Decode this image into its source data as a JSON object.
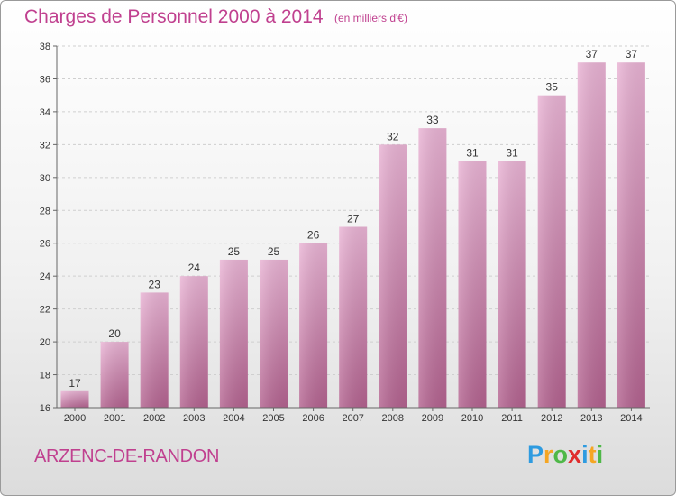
{
  "title": "Charges de Personnel 2000 à 2014",
  "subtitle": "(en milliers d'€)",
  "town": "ARZENC-DE-RANDON",
  "logo": {
    "letters": [
      {
        "ch": "P",
        "color": "#2e9be0"
      },
      {
        "ch": "r",
        "color": "#f5a623"
      },
      {
        "ch": "o",
        "color": "#4fb848"
      },
      {
        "ch": "x",
        "color": "#e02b2b"
      },
      {
        "ch": "i",
        "color": "#2e9be0"
      },
      {
        "ch": "t",
        "color": "#f5a623"
      },
      {
        "ch": "i",
        "color": "#4fb848"
      }
    ]
  },
  "colors": {
    "accent": "#c0408f",
    "bar_top": "#e9b3d4",
    "bar_bottom": "#b3628f"
  },
  "chart_data": {
    "type": "bar",
    "title": "Charges de Personnel 2000 à 2014",
    "subtitle": "(en milliers d'€)",
    "xlabel": "",
    "ylabel": "",
    "categories": [
      "2000",
      "2001",
      "2002",
      "2003",
      "2004",
      "2005",
      "2006",
      "2007",
      "2008",
      "2009",
      "2010",
      "2011",
      "2012",
      "2013",
      "2014"
    ],
    "values": [
      17,
      20,
      23,
      24,
      25,
      25,
      26,
      27,
      32,
      33,
      31,
      31,
      35,
      37,
      37
    ],
    "ylim": [
      16,
      38
    ],
    "yticks": [
      16,
      18,
      20,
      22,
      24,
      26,
      28,
      30,
      32,
      34,
      36,
      38
    ],
    "grid": true,
    "legend": "none"
  }
}
